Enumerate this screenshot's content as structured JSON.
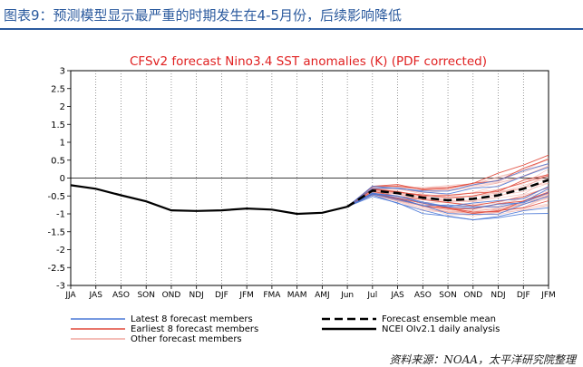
{
  "figure_title": "图表9：预测模型显示最严重的时期发生在4-5月份，后续影响降低",
  "source": "资料来源：NOAA，太平洋研究院整理",
  "chart_data": {
    "type": "line",
    "title": "CFSv2 forecast Nino3.4 SST anomalies (K) (PDF corrected)",
    "xlabel": "",
    "ylabel": "",
    "categories": [
      "JJA",
      "JAS",
      "ASO",
      "SON",
      "OND",
      "NDJ",
      "DJF",
      "JFM",
      "FMA",
      "MAM",
      "AMJ",
      "Jun",
      "Jul",
      "JAS",
      "ASO",
      "SON",
      "OND",
      "NDJ",
      "DJF",
      "JFM"
    ],
    "ylim": [
      -3,
      3
    ],
    "yticks": [
      "3",
      "2.5",
      "2",
      "1.5",
      "1",
      "0.5",
      "0",
      "-0.5",
      "-1",
      "-1.5",
      "-2",
      "-2.5",
      "-3"
    ],
    "grid": "vertical-dotted",
    "observed": {
      "name": "NCEI OIv2.1 daily analysis",
      "color": "#000000",
      "values": [
        -0.2,
        -0.3,
        -0.48,
        -0.65,
        -0.9,
        -0.92,
        -0.9,
        -0.85,
        -0.88,
        -1.0,
        -0.97,
        -0.8
      ]
    },
    "ensemble_mean": {
      "name": "Forecast ensemble mean",
      "color": "#000000",
      "values": [
        -0.8,
        -0.35,
        -0.42,
        -0.55,
        -0.62,
        -0.58,
        -0.48,
        -0.3,
        -0.05
      ]
    },
    "member_groups": [
      {
        "name": "Latest 8 forecast members",
        "color": "#4a78d6",
        "offset": -0.18
      },
      {
        "name": "Earliest 8 forecast members",
        "color": "#e0483a",
        "offset": 0.12
      },
      {
        "name": "Other forecast members",
        "color": "#f0a8a0",
        "offset": 0.0
      }
    ],
    "legend_position": "bottom"
  }
}
